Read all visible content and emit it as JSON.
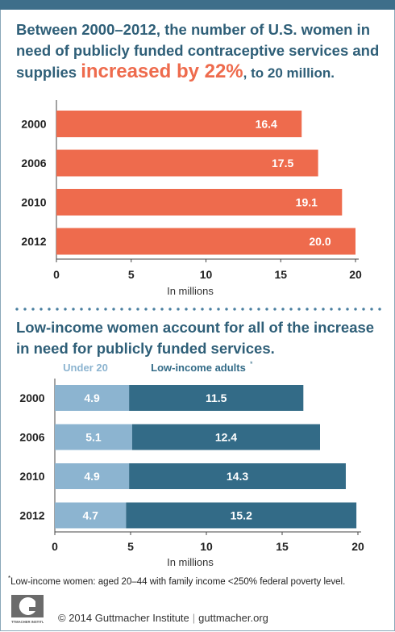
{
  "header": {
    "title_part1": "Between 2000–2012, the number of U.S. women in need of publicly funded contraceptive services and supplies ",
    "title_highlight": "increased by 22%",
    "title_part2": ", to 20 million."
  },
  "section2": {
    "title": "Low-income women account for all of the increase in need for publicly funded services."
  },
  "chart_data": [
    {
      "type": "bar",
      "orientation": "horizontal",
      "categories": [
        "2000",
        "2006",
        "2010",
        "2012"
      ],
      "series": [
        {
          "values": [
            16.4,
            17.5,
            19.1,
            20.0
          ]
        }
      ],
      "value_labels": [
        "16.4",
        "17.5",
        "19.1",
        "20.0"
      ],
      "xlabel": "In millions",
      "xlim": [
        0,
        20
      ],
      "xticks": [
        "0",
        "5",
        "10",
        "15",
        "20"
      ],
      "colors": {
        "bar": "#ee6b4d"
      }
    },
    {
      "type": "bar",
      "orientation": "horizontal",
      "stacked": true,
      "categories": [
        "2000",
        "2006",
        "2010",
        "2012"
      ],
      "series": [
        {
          "name": "Under 20",
          "values": [
            4.9,
            5.1,
            4.9,
            4.7
          ],
          "labels": [
            "4.9",
            "5.1",
            "4.9",
            "4.7"
          ],
          "color": "#8cb4d0"
        },
        {
          "name": "Low-income  adults",
          "values": [
            11.5,
            12.4,
            14.3,
            15.2
          ],
          "labels": [
            "11.5",
            "12.4",
            "14.3",
            "15.2"
          ],
          "color": "#336b87"
        }
      ],
      "legend_marker": "*",
      "xlabel": "In millions",
      "xlim": [
        0,
        20
      ],
      "xticks": [
        "0",
        "5",
        "10",
        "15",
        "20"
      ]
    }
  ],
  "footnote": {
    "marker": "*",
    "text": "Low-income women: aged 20–44 with family income <250% federal poverty level."
  },
  "footer": {
    "logo_text": "GUTTMACHER INSTITUTE",
    "copyright": "© 2014 Guttmacher Institute",
    "separator": "|",
    "website": "guttmacher.org"
  }
}
